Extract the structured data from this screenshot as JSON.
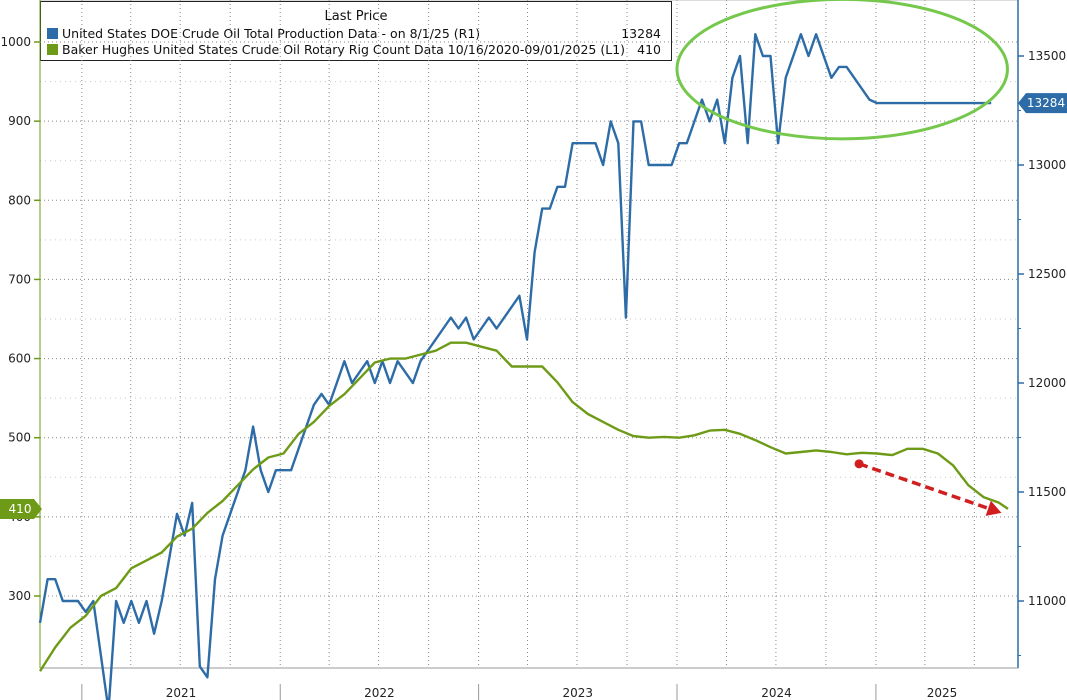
{
  "legend": {
    "header": "Last Price",
    "series": [
      {
        "swatch": "#2d6ca7",
        "label": "United States DOE Crude Oil Total Production Data -  on 8/1/25  (R1)",
        "value": "13284"
      },
      {
        "swatch": "#6e9b17",
        "label": "Baker Hughes United States Crude Oil Rotary Rig Count Data 10/16/2020-09/01/2025  (L1)",
        "value": "410"
      }
    ]
  },
  "chart_data": {
    "type": "line",
    "title": "",
    "x_axis": {
      "range": [
        "2020-10-16",
        "2025-09-01"
      ],
      "tick_labels": [
        "2021",
        "2022",
        "2023",
        "2024",
        "2025"
      ]
    },
    "y_axis_left": {
      "label": "",
      "range": [
        220,
        1030
      ],
      "tick_labels": [
        "300",
        "400",
        "500",
        "600",
        "700",
        "800",
        "900",
        "1000"
      ],
      "last_value_tag": "410"
    },
    "y_axis_right": {
      "label": "",
      "range": [
        10700,
        13700
      ],
      "tick_labels": [
        "11000",
        "11500",
        "12000",
        "12500",
        "13000",
        "13500"
      ],
      "last_value_tag": "13284"
    },
    "grid": true,
    "legend_position": "top-left",
    "series": [
      {
        "name": "United States DOE Crude Oil Total Production Data -  on 8/1/25  (R1)",
        "axis": "right",
        "color": "#2d6ca7",
        "points": [
          [
            "2020-10-16",
            10900
          ],
          [
            "2020-10-30",
            11100
          ],
          [
            "2020-11-13",
            11100
          ],
          [
            "2020-11-27",
            11000
          ],
          [
            "2020-12-11",
            11000
          ],
          [
            "2020-12-25",
            11000
          ],
          [
            "2021-01-08",
            10950
          ],
          [
            "2021-01-22",
            11000
          ],
          [
            "2021-02-05",
            10750
          ],
          [
            "2021-02-19",
            10500
          ],
          [
            "2021-03-05",
            11000
          ],
          [
            "2021-03-19",
            10900
          ],
          [
            "2021-04-02",
            11000
          ],
          [
            "2021-04-16",
            10900
          ],
          [
            "2021-04-30",
            11000
          ],
          [
            "2021-05-14",
            10850
          ],
          [
            "2021-05-28",
            11000
          ],
          [
            "2021-06-11",
            11200
          ],
          [
            "2021-06-25",
            11400
          ],
          [
            "2021-07-09",
            11300
          ],
          [
            "2021-07-23",
            11450
          ],
          [
            "2021-08-06",
            10700
          ],
          [
            "2021-08-20",
            10650
          ],
          [
            "2021-09-03",
            11100
          ],
          [
            "2021-09-17",
            11300
          ],
          [
            "2021-10-01",
            11400
          ],
          [
            "2021-10-15",
            11500
          ],
          [
            "2021-10-29",
            11600
          ],
          [
            "2021-11-12",
            11800
          ],
          [
            "2021-11-26",
            11600
          ],
          [
            "2021-12-10",
            11500
          ],
          [
            "2021-12-24",
            11600
          ],
          [
            "2022-01-07",
            11600
          ],
          [
            "2022-01-21",
            11600
          ],
          [
            "2022-02-04",
            11700
          ],
          [
            "2022-02-18",
            11800
          ],
          [
            "2022-03-04",
            11900
          ],
          [
            "2022-03-18",
            11950
          ],
          [
            "2022-04-01",
            11900
          ],
          [
            "2022-04-15",
            12000
          ],
          [
            "2022-04-29",
            12100
          ],
          [
            "2022-05-13",
            12000
          ],
          [
            "2022-05-27",
            12050
          ],
          [
            "2022-06-10",
            12100
          ],
          [
            "2022-06-24",
            12000
          ],
          [
            "2022-07-08",
            12100
          ],
          [
            "2022-07-22",
            12000
          ],
          [
            "2022-08-05",
            12100
          ],
          [
            "2022-08-19",
            12050
          ],
          [
            "2022-09-02",
            12000
          ],
          [
            "2022-09-16",
            12100
          ],
          [
            "2022-09-30",
            12150
          ],
          [
            "2022-10-14",
            12200
          ],
          [
            "2022-10-28",
            12250
          ],
          [
            "2022-11-11",
            12300
          ],
          [
            "2022-11-25",
            12250
          ],
          [
            "2022-12-09",
            12300
          ],
          [
            "2022-12-23",
            12200
          ],
          [
            "2023-01-06",
            12250
          ],
          [
            "2023-01-20",
            12300
          ],
          [
            "2023-02-03",
            12250
          ],
          [
            "2023-02-17",
            12300
          ],
          [
            "2023-03-03",
            12350
          ],
          [
            "2023-03-17",
            12400
          ],
          [
            "2023-03-31",
            12200
          ],
          [
            "2023-04-14",
            12600
          ],
          [
            "2023-04-28",
            12800
          ],
          [
            "2023-05-12",
            12800
          ],
          [
            "2023-05-26",
            12900
          ],
          [
            "2023-06-09",
            12900
          ],
          [
            "2023-06-23",
            13100
          ],
          [
            "2023-07-07",
            13100
          ],
          [
            "2023-07-21",
            13100
          ],
          [
            "2023-08-04",
            13100
          ],
          [
            "2023-08-18",
            13000
          ],
          [
            "2023-09-01",
            13200
          ],
          [
            "2023-09-15",
            13100
          ],
          [
            "2023-09-29",
            12300
          ],
          [
            "2023-10-13",
            13200
          ],
          [
            "2023-10-27",
            13200
          ],
          [
            "2023-11-10",
            13000
          ],
          [
            "2023-11-24",
            13000
          ],
          [
            "2023-12-08",
            13000
          ],
          [
            "2023-12-22",
            13000
          ],
          [
            "2024-01-05",
            13100
          ],
          [
            "2024-01-19",
            13100
          ],
          [
            "2024-02-02",
            13200
          ],
          [
            "2024-02-16",
            13300
          ],
          [
            "2024-03-01",
            13200
          ],
          [
            "2024-03-15",
            13300
          ],
          [
            "2024-03-29",
            13100
          ],
          [
            "2024-04-12",
            13400
          ],
          [
            "2024-04-26",
            13500
          ],
          [
            "2024-05-10",
            13100
          ],
          [
            "2024-05-24",
            13600
          ],
          [
            "2024-06-07",
            13500
          ],
          [
            "2024-06-21",
            13500
          ],
          [
            "2024-07-05",
            13100
          ],
          [
            "2024-07-19",
            13400
          ],
          [
            "2024-08-02",
            13500
          ],
          [
            "2024-08-16",
            13600
          ],
          [
            "2024-08-30",
            13500
          ],
          [
            "2024-09-13",
            13600
          ],
          [
            "2024-09-27",
            13500
          ],
          [
            "2024-10-11",
            13400
          ],
          [
            "2024-10-25",
            13450
          ],
          [
            "2024-11-08",
            13450
          ],
          [
            "2024-11-22",
            13400
          ],
          [
            "2024-12-06",
            13350
          ],
          [
            "2024-12-20",
            13300
          ],
          [
            "2025-01-03",
            13284
          ],
          [
            "2025-01-31",
            13284
          ],
          [
            "2025-02-28",
            13284
          ],
          [
            "2025-03-28",
            13284
          ],
          [
            "2025-04-25",
            13284
          ],
          [
            "2025-05-23",
            13284
          ],
          [
            "2025-06-20",
            13284
          ],
          [
            "2025-07-18",
            13284
          ],
          [
            "2025-08-01",
            13284
          ]
        ]
      },
      {
        "name": "Baker Hughes United States Crude Oil Rotary Rig Count Data 10/16/2020-09/01/2025  (L1)",
        "axis": "left",
        "color": "#6e9b17",
        "points": [
          [
            "2020-10-16",
            205
          ],
          [
            "2020-11-13",
            235
          ],
          [
            "2020-12-11",
            260
          ],
          [
            "2021-01-08",
            275
          ],
          [
            "2021-02-05",
            300
          ],
          [
            "2021-03-05",
            310
          ],
          [
            "2021-04-02",
            335
          ],
          [
            "2021-04-30",
            345
          ],
          [
            "2021-05-28",
            355
          ],
          [
            "2021-06-25",
            375
          ],
          [
            "2021-07-23",
            385
          ],
          [
            "2021-08-20",
            405
          ],
          [
            "2021-09-17",
            420
          ],
          [
            "2021-10-15",
            440
          ],
          [
            "2021-11-12",
            460
          ],
          [
            "2021-12-10",
            475
          ],
          [
            "2022-01-07",
            480
          ],
          [
            "2022-02-04",
            505
          ],
          [
            "2022-03-04",
            520
          ],
          [
            "2022-04-01",
            540
          ],
          [
            "2022-04-29",
            555
          ],
          [
            "2022-05-27",
            575
          ],
          [
            "2022-06-24",
            595
          ],
          [
            "2022-07-22",
            600
          ],
          [
            "2022-08-19",
            600
          ],
          [
            "2022-09-16",
            605
          ],
          [
            "2022-10-14",
            610
          ],
          [
            "2022-11-11",
            620
          ],
          [
            "2022-12-09",
            620
          ],
          [
            "2023-01-06",
            615
          ],
          [
            "2023-02-03",
            610
          ],
          [
            "2023-03-03",
            590
          ],
          [
            "2023-03-31",
            590
          ],
          [
            "2023-04-28",
            590
          ],
          [
            "2023-05-26",
            570
          ],
          [
            "2023-06-23",
            545
          ],
          [
            "2023-07-21",
            530
          ],
          [
            "2023-08-18",
            520
          ],
          [
            "2023-09-15",
            510
          ],
          [
            "2023-10-13",
            502
          ],
          [
            "2023-11-10",
            500
          ],
          [
            "2023-12-08",
            501
          ],
          [
            "2024-01-05",
            500
          ],
          [
            "2024-02-02",
            503
          ],
          [
            "2024-03-01",
            509
          ],
          [
            "2024-03-29",
            510
          ],
          [
            "2024-04-26",
            505
          ],
          [
            "2024-05-24",
            497
          ],
          [
            "2024-06-21",
            488
          ],
          [
            "2024-07-19",
            480
          ],
          [
            "2024-08-16",
            482
          ],
          [
            "2024-09-13",
            484
          ],
          [
            "2024-10-11",
            482
          ],
          [
            "2024-11-08",
            479
          ],
          [
            "2024-12-06",
            481
          ],
          [
            "2025-01-03",
            480
          ],
          [
            "2025-01-31",
            478
          ],
          [
            "2025-02-28",
            486
          ],
          [
            "2025-03-28",
            486
          ],
          [
            "2025-04-25",
            480
          ],
          [
            "2025-05-23",
            465
          ],
          [
            "2025-06-20",
            440
          ],
          [
            "2025-07-18",
            425
          ],
          [
            "2025-08-15",
            418
          ],
          [
            "2025-09-01",
            410
          ]
        ]
      }
    ],
    "annotations": [
      {
        "kind": "ellipse",
        "color": "#76c84d",
        "x_range": [
          "2024-01-01",
          "2025-08-31"
        ],
        "y_range_right": [
          13120,
          13760
        ]
      },
      {
        "kind": "arrow",
        "color": "#d11f1f",
        "from": [
          "2024-12-01",
          467
        ],
        "to": [
          "2025-08-20",
          405
        ]
      }
    ]
  }
}
